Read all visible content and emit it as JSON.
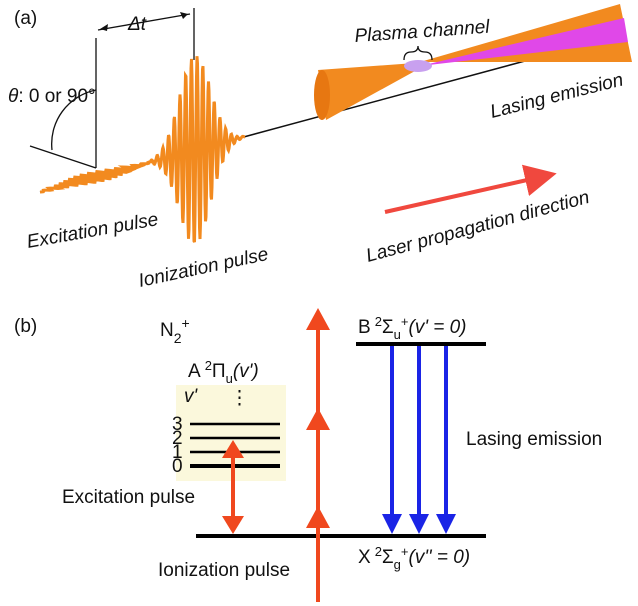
{
  "panel_a": {
    "label": "(a)",
    "delay": "Δt",
    "angle_symbol": "θ",
    "angle_text": ": 0 or 90°",
    "plasma": "Plasma channel",
    "lasing": "Lasing emission",
    "excitation": "Excitation pulse",
    "ionization": "Ionization pulse",
    "direction": "Laser propagation direction"
  },
  "panel_b": {
    "label": "(b)",
    "ion": {
      "base": "N",
      "sub": "2",
      "sup": "+"
    },
    "state_a": {
      "pre": "A",
      "sup": "2",
      "main": "Π",
      "sub": "u",
      "post": "(v')"
    },
    "vib_label": "v'",
    "vib_dots": "⋮",
    "vib_levels": [
      "3",
      "2",
      "1",
      "0"
    ],
    "state_b": {
      "pre": "B",
      "sup": "2",
      "main": "Σ",
      "sub": "u",
      "sup2": "+",
      "post": "(v' = 0)"
    },
    "state_x": {
      "pre": "X",
      "sup": "2",
      "main": "Σ",
      "sub": "g",
      "sup2": "+",
      "post": "(v'' = 0)"
    },
    "lasing": "Lasing emission",
    "excitation": "Excitation pulse",
    "ionization": "Ionization pulse"
  }
}
